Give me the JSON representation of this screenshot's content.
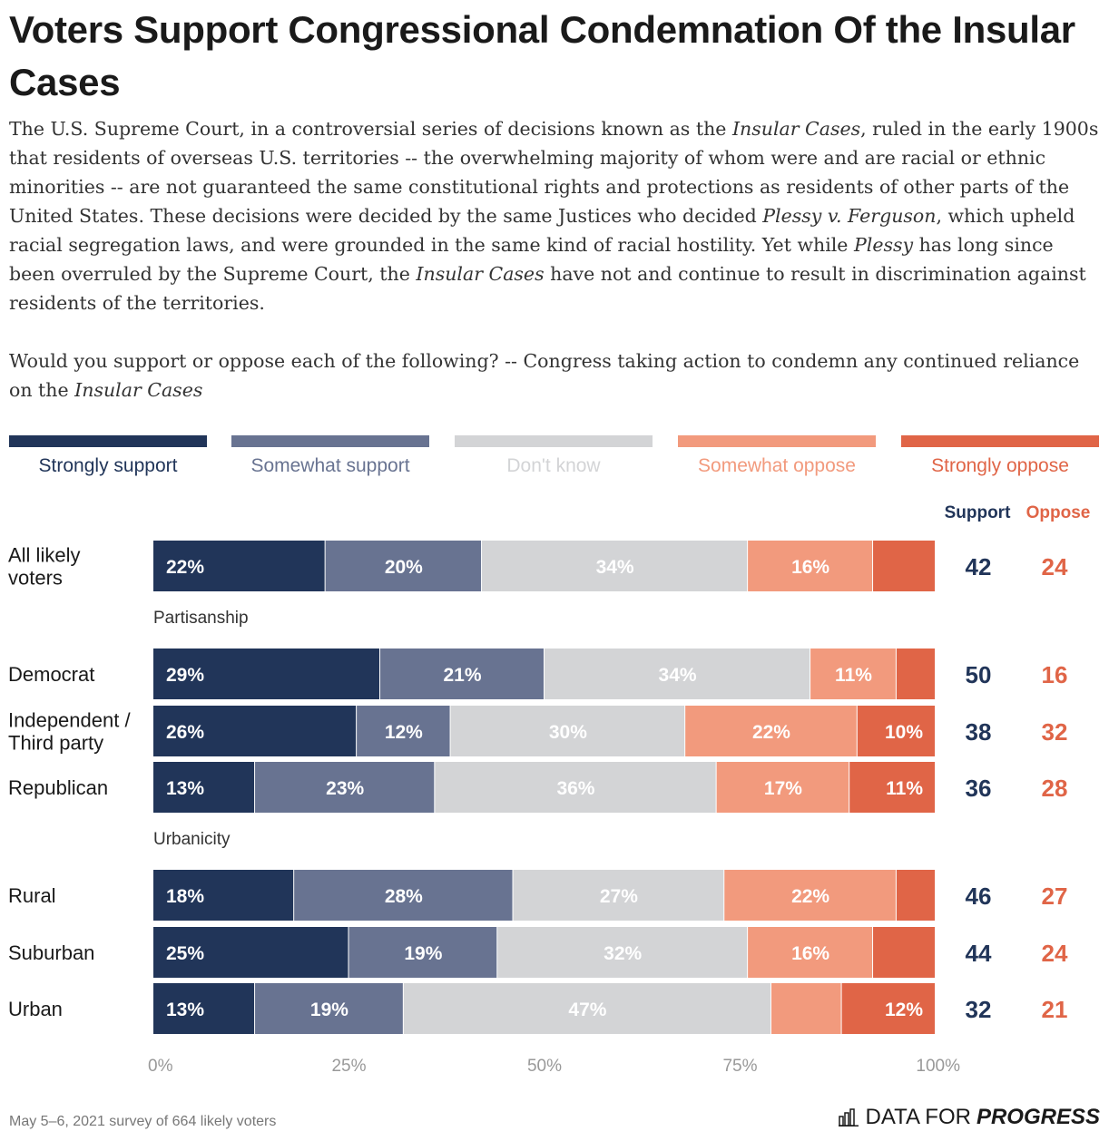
{
  "title": "Voters Support Congressional Condemnation Of the Insular Cases",
  "intro_parts": [
    {
      "t": "The U.S. Supreme Court, in a controversial series of decisions known as the ",
      "i": false
    },
    {
      "t": "Insular Cases",
      "i": true
    },
    {
      "t": ", ruled in the early 1900s that residents of overseas U.S. territories -- the overwhelming majority of whom were and are racial or ethnic minorities -- are not guaranteed the same constitutional rights and protections as residents of other parts of the United States. These decisions were decided by the same Justices who decided ",
      "i": false
    },
    {
      "t": "Plessy v. Ferguson",
      "i": true
    },
    {
      "t": ", which upheld racial segregation laws, and were grounded in the same kind of racial hostility. Yet while ",
      "i": false
    },
    {
      "t": "Plessy",
      "i": true
    },
    {
      "t": " has long since been overruled by the Supreme Court, the ",
      "i": false
    },
    {
      "t": "Insular Cases",
      "i": true
    },
    {
      "t": " have not and continue to result in discrimination against residents of the territories.",
      "i": false
    }
  ],
  "question_parts": [
    {
      "t": "Would you support or oppose each of the following? -- Congress taking action to condemn any continued reliance on the ",
      "i": false
    },
    {
      "t": "Insular Cases",
      "i": true
    }
  ],
  "legend": [
    {
      "label": "Strongly support",
      "color": "#213559",
      "text_color": "#213559"
    },
    {
      "label": "Somewhat support",
      "color": "#687391",
      "text_color": "#687391"
    },
    {
      "label": "Don't know",
      "color": "#d3d4d6",
      "text_color": "#d3d4d6"
    },
    {
      "label": "Somewhat oppose",
      "color": "#f29a7d",
      "text_color": "#f29a7d"
    },
    {
      "label": "Strongly oppose",
      "color": "#e06547",
      "text_color": "#e06547"
    }
  ],
  "support_header": "Support",
  "oppose_header": "Oppose",
  "colors": {
    "support": "#213559",
    "oppose": "#e06547",
    "axis": "#999999",
    "group": "#333333"
  },
  "chart_data": {
    "type": "bar",
    "orientation": "horizontal",
    "stacked": true,
    "x_ticks": [
      "0%",
      "25%",
      "50%",
      "75%",
      "100%"
    ],
    "xlim": [
      0,
      100
    ],
    "series_names": [
      "Strongly support",
      "Somewhat support",
      "Don't know",
      "Somewhat oppose",
      "Strongly oppose"
    ],
    "rows": [
      {
        "group": null,
        "label": "All likely voters",
        "label_lines": [
          "All likely",
          "voters"
        ],
        "values": [
          22,
          20,
          34,
          16,
          8
        ],
        "labels": [
          "22%",
          "20%",
          "34%",
          "16%",
          ""
        ],
        "support": "42",
        "oppose": "24"
      },
      {
        "group": "Partisanship",
        "label": "Democrat",
        "label_lines": [
          "Democrat"
        ],
        "values": [
          29,
          21,
          34,
          11,
          5
        ],
        "labels": [
          "29%",
          "21%",
          "34%",
          "11%",
          ""
        ],
        "support": "50",
        "oppose": "16"
      },
      {
        "group": null,
        "label": "Independent / Third party",
        "label_lines": [
          "Independent /",
          "Third party"
        ],
        "values": [
          26,
          12,
          30,
          22,
          10
        ],
        "labels": [
          "26%",
          "12%",
          "30%",
          "22%",
          "10%"
        ],
        "support": "38",
        "oppose": "32"
      },
      {
        "group": null,
        "label": "Republican",
        "label_lines": [
          "Republican"
        ],
        "values": [
          13,
          23,
          36,
          17,
          11
        ],
        "labels": [
          "13%",
          "23%",
          "36%",
          "17%",
          "11%"
        ],
        "support": "36",
        "oppose": "28"
      },
      {
        "group": "Urbanicity",
        "label": "Rural",
        "label_lines": [
          "Rural"
        ],
        "values": [
          18,
          28,
          27,
          22,
          5
        ],
        "labels": [
          "18%",
          "28%",
          "27%",
          "22%",
          ""
        ],
        "support": "46",
        "oppose": "27"
      },
      {
        "group": null,
        "label": "Suburban",
        "label_lines": [
          "Suburban"
        ],
        "values": [
          25,
          19,
          32,
          16,
          8
        ],
        "labels": [
          "25%",
          "19%",
          "32%",
          "16%",
          ""
        ],
        "support": "44",
        "oppose": "24"
      },
      {
        "group": null,
        "label": "Urban",
        "label_lines": [
          "Urban"
        ],
        "values": [
          13,
          19,
          47,
          9,
          12
        ],
        "labels": [
          "13%",
          "19%",
          "47%",
          "",
          "12%"
        ],
        "support": "32",
        "oppose": "21"
      }
    ]
  },
  "footer": {
    "source": "May 5–6, 2021 survey of 664 likely voters",
    "brand_light": "DATA FOR",
    "brand_bold": "PROGRESS"
  }
}
